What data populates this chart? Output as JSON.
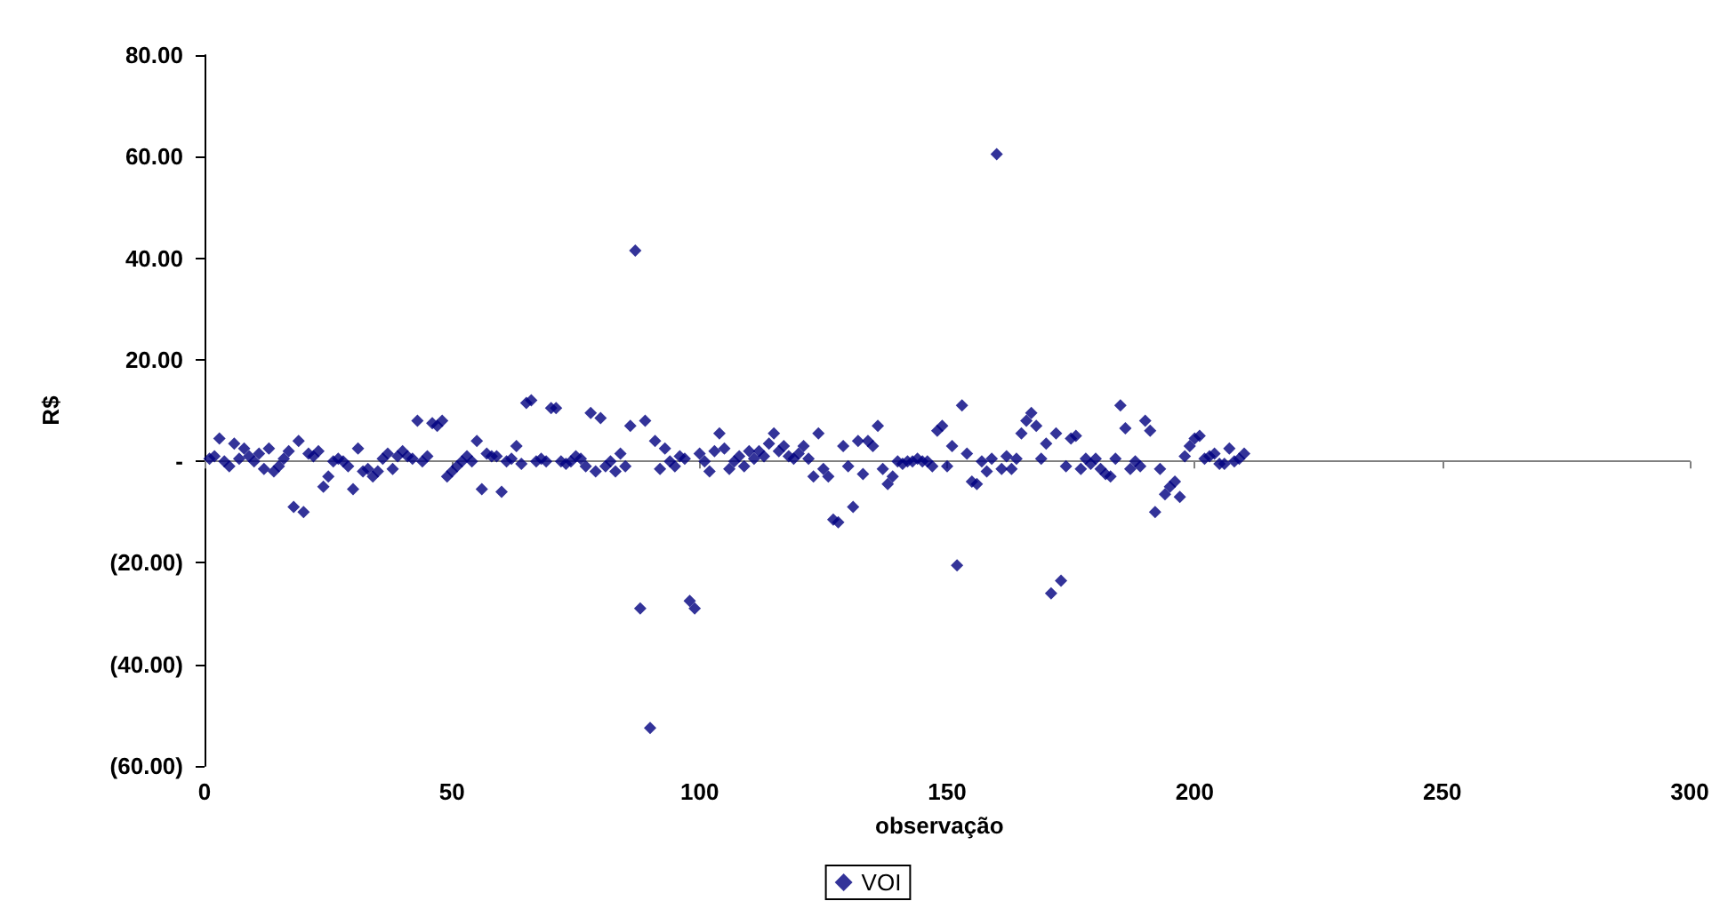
{
  "chart_data": {
    "type": "scatter",
    "xlabel": "observação",
    "ylabel": "R$",
    "xlim": [
      0,
      300
    ],
    "xticks": [
      0,
      50,
      100,
      150,
      200,
      250,
      300
    ],
    "ylim": [
      -60,
      80
    ],
    "yticks": [
      {
        "value": -60,
        "label": "(60.00)"
      },
      {
        "value": -40,
        "label": "(40.00)"
      },
      {
        "value": -20,
        "label": "(20.00)"
      },
      {
        "value": 0,
        "label": "-"
      },
      {
        "value": 20,
        "label": "20.00"
      },
      {
        "value": 40,
        "label": "40.00"
      },
      {
        "value": 60,
        "label": "60.00"
      },
      {
        "value": 80,
        "label": "80.00"
      }
    ],
    "legend": "bottom",
    "marker": "diamond",
    "x": [
      1,
      2,
      3,
      4,
      5,
      6,
      7,
      8,
      9,
      10,
      11,
      12,
      13,
      14,
      15,
      16,
      17,
      18,
      19,
      20,
      21,
      22,
      23,
      24,
      25,
      26,
      27,
      28,
      29,
      30,
      31,
      32,
      33,
      34,
      35,
      36,
      37,
      38,
      39,
      40,
      41,
      42,
      43,
      44,
      45,
      46,
      47,
      48,
      49,
      50,
      51,
      52,
      53,
      54,
      55,
      56,
      57,
      58,
      59,
      60,
      61,
      62,
      63,
      64,
      65,
      66,
      67,
      68,
      69,
      70,
      71,
      72,
      73,
      74,
      75,
      76,
      77,
      78,
      79,
      80,
      81,
      82,
      83,
      84,
      85,
      86,
      87,
      88,
      89,
      90,
      91,
      92,
      93,
      94,
      95,
      96,
      97,
      98,
      99,
      100,
      101,
      102,
      103,
      104,
      105,
      106,
      107,
      108,
      109,
      110,
      111,
      112,
      113,
      114,
      115,
      116,
      117,
      118,
      119,
      120,
      121,
      122,
      123,
      124,
      125,
      126,
      127,
      128,
      129,
      130,
      131,
      132,
      133,
      134,
      135,
      136,
      137,
      138,
      139,
      140,
      141,
      142,
      143,
      144,
      145,
      146,
      147,
      148,
      149,
      150,
      151,
      152,
      153,
      154,
      155,
      156,
      157,
      158,
      159,
      160,
      161,
      162,
      163,
      164,
      165,
      166,
      167,
      168,
      169,
      170,
      171,
      172,
      173,
      174,
      175,
      176,
      177,
      178,
      179,
      180,
      181,
      182,
      183,
      184,
      185,
      186,
      187,
      188,
      189,
      190,
      191,
      192,
      193,
      194,
      195,
      196,
      197,
      198,
      199,
      200,
      201,
      202,
      203,
      204,
      205,
      206,
      207,
      208,
      209,
      210
    ],
    "series": [
      {
        "name": "VOI",
        "color": "#000080",
        "values": [
          0.5,
          1,
          4.5,
          0,
          -1,
          3.5,
          0.5,
          2.5,
          1,
          0,
          1.5,
          -1.5,
          2.5,
          -2,
          -1,
          0.5,
          2,
          -9,
          4,
          -10,
          1.5,
          1,
          2,
          -5,
          -3,
          0,
          0.5,
          0,
          -1,
          -5.5,
          2.5,
          -2,
          -1.5,
          -3,
          -2,
          0.5,
          1.5,
          -1.5,
          1,
          2,
          1,
          0.5,
          8,
          0,
          1,
          7.5,
          7,
          8,
          -3,
          -2,
          -1,
          0,
          1,
          0,
          4,
          -5.5,
          1.5,
          1,
          1,
          -6,
          0,
          0.5,
          3,
          -0.5,
          11.5,
          12,
          0,
          0.5,
          0,
          10.5,
          10.5,
          0,
          -0.5,
          0,
          1,
          0.5,
          -1,
          9.5,
          -2,
          8.5,
          -1,
          0,
          -2,
          1.5,
          -1,
          7,
          41.5,
          -29,
          8,
          -52.5,
          4,
          -1.5,
          2.5,
          0,
          -1,
          1,
          0.5,
          -27.5,
          -29,
          1.5,
          0,
          -2,
          2,
          5.5,
          2.5,
          -1.5,
          0,
          1,
          -1,
          2,
          0.5,
          2,
          1,
          3.5,
          5.5,
          2,
          3,
          1,
          0.5,
          1.5,
          3,
          0.5,
          -3,
          5.5,
          -1.5,
          -3,
          -11.5,
          -12,
          3,
          -1,
          -9,
          4,
          -2.5,
          4,
          3,
          7,
          -1.5,
          -4.5,
          -3,
          0,
          -0.5,
          0,
          0,
          0.5,
          0,
          0,
          -1,
          6,
          7,
          -1,
          3,
          -20.5,
          11,
          1.5,
          -4,
          -4.5,
          0,
          -2,
          0.5,
          60.5,
          -1.5,
          1,
          -1.5,
          0.5,
          5.5,
          8,
          9.5,
          7,
          0.5,
          3.5,
          -26,
          5.5,
          -23.5,
          -1,
          4.5,
          5,
          -1.5,
          0.5,
          -0.5,
          0.5,
          -1.5,
          -2.5,
          -3,
          0.5,
          11,
          6.5,
          -1.5,
          0,
          -1,
          8,
          6,
          -10,
          -1.5,
          -6.5,
          -5,
          -4,
          -7,
          1,
          3,
          4.5,
          5,
          0.5,
          1,
          1.5,
          -0.5,
          -0.5,
          2.5,
          0,
          0.5,
          1.5
        ]
      }
    ]
  }
}
